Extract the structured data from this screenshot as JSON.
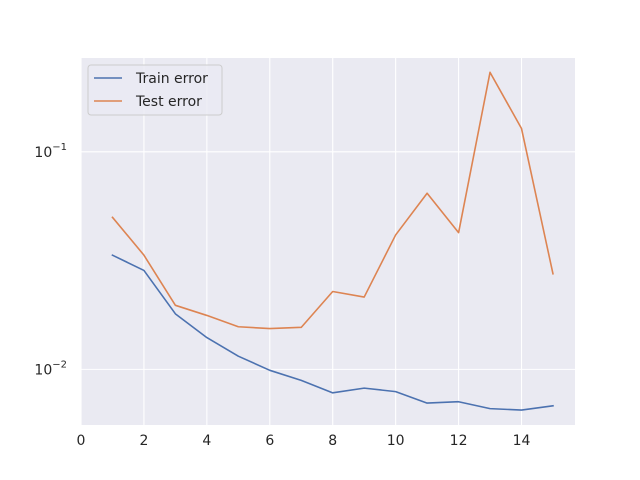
{
  "chart_data": {
    "type": "line",
    "title": "",
    "xlabel": "",
    "ylabel": "",
    "x": [
      1,
      2,
      3,
      4,
      5,
      6,
      7,
      8,
      9,
      10,
      11,
      12,
      13,
      14,
      15
    ],
    "series": [
      {
        "name": "Train error",
        "color": "#4c72b0",
        "values": [
          0.0335,
          0.0285,
          0.018,
          0.014,
          0.0115,
          0.0099,
          0.0089,
          0.0078,
          0.0082,
          0.0079,
          0.007,
          0.0071,
          0.0066,
          0.0065,
          0.0068
        ]
      },
      {
        "name": "Test error",
        "color": "#dd8452",
        "values": [
          0.05,
          0.0335,
          0.0197,
          0.0177,
          0.0157,
          0.0154,
          0.0156,
          0.0228,
          0.0215,
          0.0415,
          0.0645,
          0.0425,
          0.232,
          0.128,
          0.0275
        ]
      }
    ],
    "xlim": [
      0,
      15.7
    ],
    "ylim": [
      0.00555,
      0.27
    ],
    "yscale": "log",
    "x_ticks": [
      0,
      2,
      4,
      6,
      8,
      10,
      12,
      14
    ],
    "x_tick_labels": [
      "0",
      "2",
      "4",
      "6",
      "8",
      "10",
      "12",
      "14"
    ],
    "y_major_ticks": [
      {
        "value": 0.01,
        "base": "10",
        "exp": "−2"
      },
      {
        "value": 0.1,
        "base": "10",
        "exp": "−1"
      }
    ],
    "grid": true,
    "legend_position": "upper-left",
    "background_color": "#eaeaf2",
    "grid_color": "#ffffff"
  }
}
